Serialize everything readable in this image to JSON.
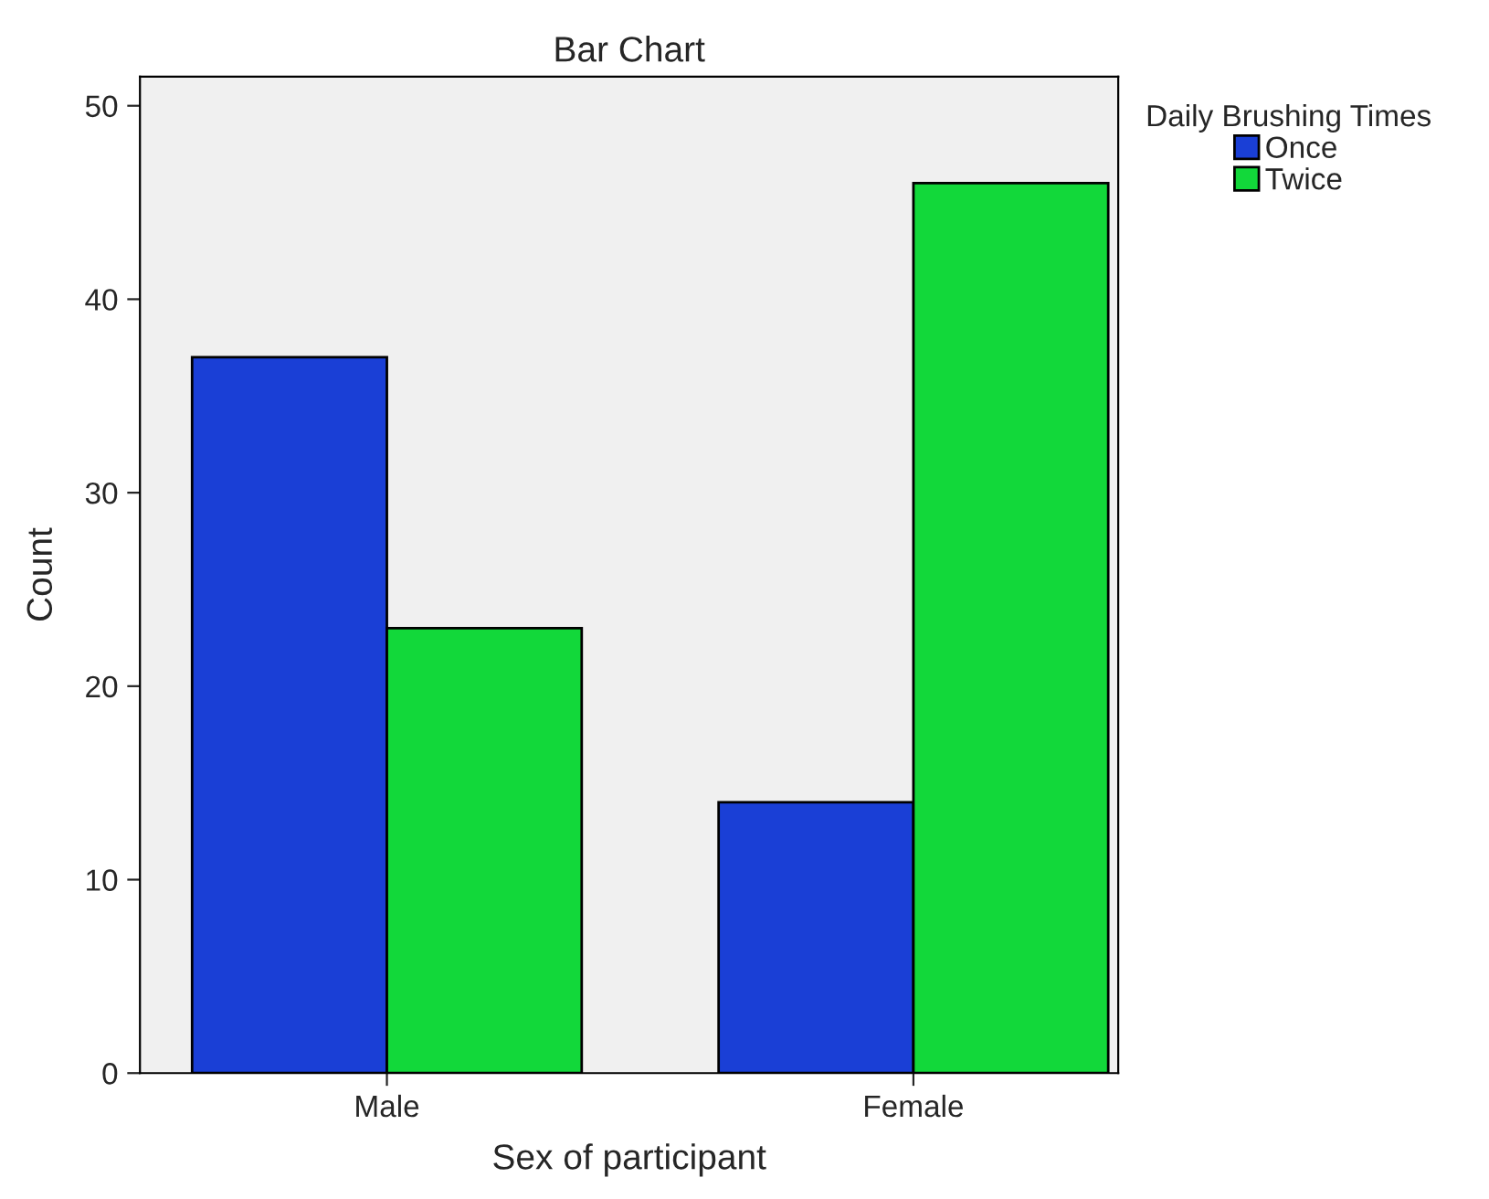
{
  "chart_data": {
    "type": "bar",
    "title": "Bar Chart",
    "xlabel": "Sex of participant",
    "ylabel": "Count",
    "legend_title": "Daily Brushing Times",
    "categories": [
      "Male",
      "Female"
    ],
    "series": [
      {
        "name": "Once",
        "color": "#1a3fd6",
        "values": [
          37,
          14
        ]
      },
      {
        "name": "Twice",
        "color": "#12d83a",
        "values": [
          23,
          46
        ]
      }
    ],
    "ylim": [
      0,
      51.5
    ],
    "yticks": [
      0,
      10,
      20,
      30,
      40,
      50
    ],
    "grid": false,
    "legend": "top right"
  }
}
